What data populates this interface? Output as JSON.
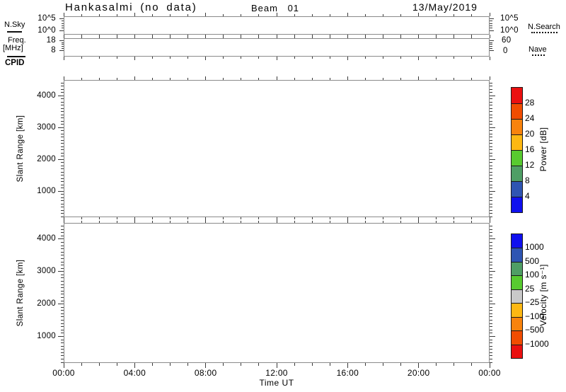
{
  "header": {
    "station": "Hankasalmi (no data)",
    "beam": "Beam 01",
    "date": "13/May/2019"
  },
  "noise_panel": {
    "left_label": "N.Sky",
    "left_top_tick": "10^5",
    "left_bottom_tick": "10^0",
    "right_top_tick": "10^5",
    "right_bottom_tick": "10^0",
    "right_label": "N.Search"
  },
  "freq_panel": {
    "left_label_top": "Freq.",
    "left_label_bottom": "[MHz]",
    "left_top_tick": "18",
    "left_bottom_tick": "8",
    "right_top_tick": "60",
    "right_bottom_tick": "0",
    "right_label": "Nave"
  },
  "cpid_label": "CPID",
  "range_axis": {
    "label": "Slant Range [km]",
    "tick_labels": [
      "4000",
      "3000",
      "2000",
      "1000"
    ],
    "tick_values_km": [
      4000,
      3000,
      2000,
      1000
    ],
    "limits_km": [
      180,
      4500
    ]
  },
  "time_axis": {
    "tick_labels": [
      "00:00",
      "04:00",
      "08:00",
      "12:00",
      "16:00",
      "20:00",
      "00:00"
    ],
    "title": "Time UT",
    "hours_range": [
      0,
      24
    ]
  },
  "power_colorbar": {
    "label": "Power [dB]",
    "boundary_labels": [
      "28",
      "24",
      "20",
      "16",
      "12",
      "8",
      "4"
    ],
    "colors_top_to_bottom": [
      "#ea1010",
      "#f14d01",
      "#f8830d",
      "#fdb813",
      "#58ca30",
      "#4f9e65",
      "#2f55b2",
      "#0f10ee"
    ]
  },
  "velocity_colorbar": {
    "label": "Velocity [m s⁻¹]",
    "boundary_labels": [
      "1000",
      "500",
      "100",
      "25",
      "−25",
      "−100",
      "−500",
      "−1000"
    ],
    "colors_top_to_bottom": [
      "#0f10ee",
      "#2f55b2",
      "#4f9e65",
      "#58ca30",
      "#c9c9c9",
      "#fdb813",
      "#f8830d",
      "#f14d01",
      "#ea1010"
    ]
  },
  "no_data": true,
  "chart_data": [
    {
      "type": "line",
      "panel": "noise",
      "left_axis": {
        "label": "N.Sky",
        "scale": "log",
        "tick_labels": [
          "10^0",
          "10^5"
        ],
        "line_style": "solid"
      },
      "right_axis": {
        "label": "N.Search",
        "scale": "log",
        "tick_labels": [
          "10^0",
          "10^5"
        ],
        "line_style": "dotted"
      },
      "x_range_hours": [
        0,
        24
      ],
      "series": [],
      "note": "no data plotted"
    },
    {
      "type": "line",
      "panel": "frequency",
      "left_axis": {
        "label": "Freq. [MHz]",
        "ticks": [
          8,
          18
        ],
        "line_style": "solid"
      },
      "right_axis": {
        "label": "Nave",
        "ticks": [
          0,
          60
        ],
        "line_style": "dotted"
      },
      "x_range_hours": [
        0,
        24
      ],
      "series": [],
      "note": "no data plotted"
    },
    {
      "type": "heatmap",
      "panel": "power",
      "title": "Power [dB]",
      "xlabel": "Time UT",
      "ylabel": "Slant Range [km]",
      "x_tick_labels": [
        "00:00",
        "04:00",
        "08:00",
        "12:00",
        "16:00",
        "20:00",
        "00:00"
      ],
      "y_ticks_km": [
        1000,
        2000,
        3000,
        4000
      ],
      "ylim_km": [
        180,
        4500
      ],
      "color_levels_db": [
        4,
        8,
        12,
        16,
        20,
        24,
        28
      ],
      "colors_low_to_high": [
        "#0f10ee",
        "#2f55b2",
        "#4f9e65",
        "#58ca30",
        "#fdb813",
        "#f8830d",
        "#f14d01",
        "#ea1010"
      ],
      "values": [],
      "note": "no data plotted"
    },
    {
      "type": "heatmap",
      "panel": "velocity",
      "title": "Velocity [m s⁻¹]",
      "xlabel": "Time UT",
      "ylabel": "Slant Range [km]",
      "x_tick_labels": [
        "00:00",
        "04:00",
        "08:00",
        "12:00",
        "16:00",
        "20:00",
        "00:00"
      ],
      "y_ticks_km": [
        1000,
        2000,
        3000,
        4000
      ],
      "ylim_km": [
        180,
        4500
      ],
      "color_levels_ms": [
        -1000,
        -500,
        -100,
        -25,
        25,
        100,
        500,
        1000
      ],
      "colors_low_to_high": [
        "#ea1010",
        "#f14d01",
        "#f8830d",
        "#fdb813",
        "#c9c9c9",
        "#58ca30",
        "#4f9e65",
        "#2f55b2",
        "#0f10ee"
      ],
      "values": [],
      "note": "no data plotted"
    }
  ]
}
